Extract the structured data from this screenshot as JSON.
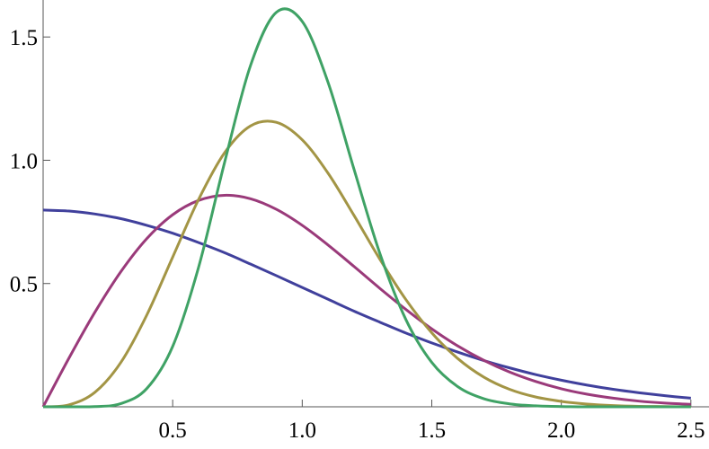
{
  "chart_data": {
    "type": "line",
    "x": [
      0,
      0.1,
      0.2,
      0.3,
      0.4,
      0.5,
      0.6,
      0.7,
      0.8,
      0.9,
      1.0,
      1.1,
      1.2,
      1.3,
      1.4,
      1.5,
      1.6,
      1.7,
      1.8,
      1.9,
      2.0,
      2.1,
      2.2,
      2.3,
      2.4,
      2.5
    ],
    "series": [
      {
        "color": "#40409c",
        "values": [
          0.798,
          0.794,
          0.782,
          0.763,
          0.736,
          0.704,
          0.666,
          0.625,
          0.579,
          0.532,
          0.484,
          0.436,
          0.388,
          0.343,
          0.299,
          0.259,
          0.222,
          0.188,
          0.158,
          0.131,
          0.108,
          0.088,
          0.071,
          0.057,
          0.045,
          0.035
        ]
      },
      {
        "color": "#9a3a7a",
        "values": [
          0,
          0.198,
          0.384,
          0.548,
          0.682,
          0.779,
          0.837,
          0.858,
          0.844,
          0.801,
          0.736,
          0.656,
          0.569,
          0.48,
          0.395,
          0.316,
          0.247,
          0.189,
          0.141,
          0.103,
          0.073,
          0.051,
          0.035,
          0.023,
          0.015,
          0.01
        ]
      },
      {
        "color": "#a39545",
        "values": [
          0,
          0.008,
          0.059,
          0.18,
          0.372,
          0.607,
          0.841,
          1.03,
          1.139,
          1.154,
          1.083,
          0.947,
          0.776,
          0.598,
          0.435,
          0.3,
          0.196,
          0.121,
          0.071,
          0.04,
          0.022,
          0.011,
          0.005,
          0.002,
          0.001,
          0
        ]
      },
      {
        "color": "#3fa265",
        "values": [
          0,
          0,
          0.001,
          0.013,
          0.074,
          0.245,
          0.566,
          0.99,
          1.383,
          1.6,
          1.563,
          1.315,
          0.963,
          0.621,
          0.354,
          0.18,
          0.082,
          0.033,
          0.012,
          0.004,
          0.001,
          0,
          0,
          0,
          0,
          0
        ]
      }
    ],
    "xlim": [
      0,
      2.57
    ],
    "ylim": [
      0,
      1.65
    ],
    "xticks": [
      0.5,
      {
        "value": 1.0,
        "label": "1.0"
      },
      1.5,
      {
        "value": 2.0,
        "label": "2.0"
      },
      2.5
    ],
    "yticks": [
      0.5,
      {
        "value": 1.0,
        "label": "1.0"
      },
      1.5
    ]
  }
}
